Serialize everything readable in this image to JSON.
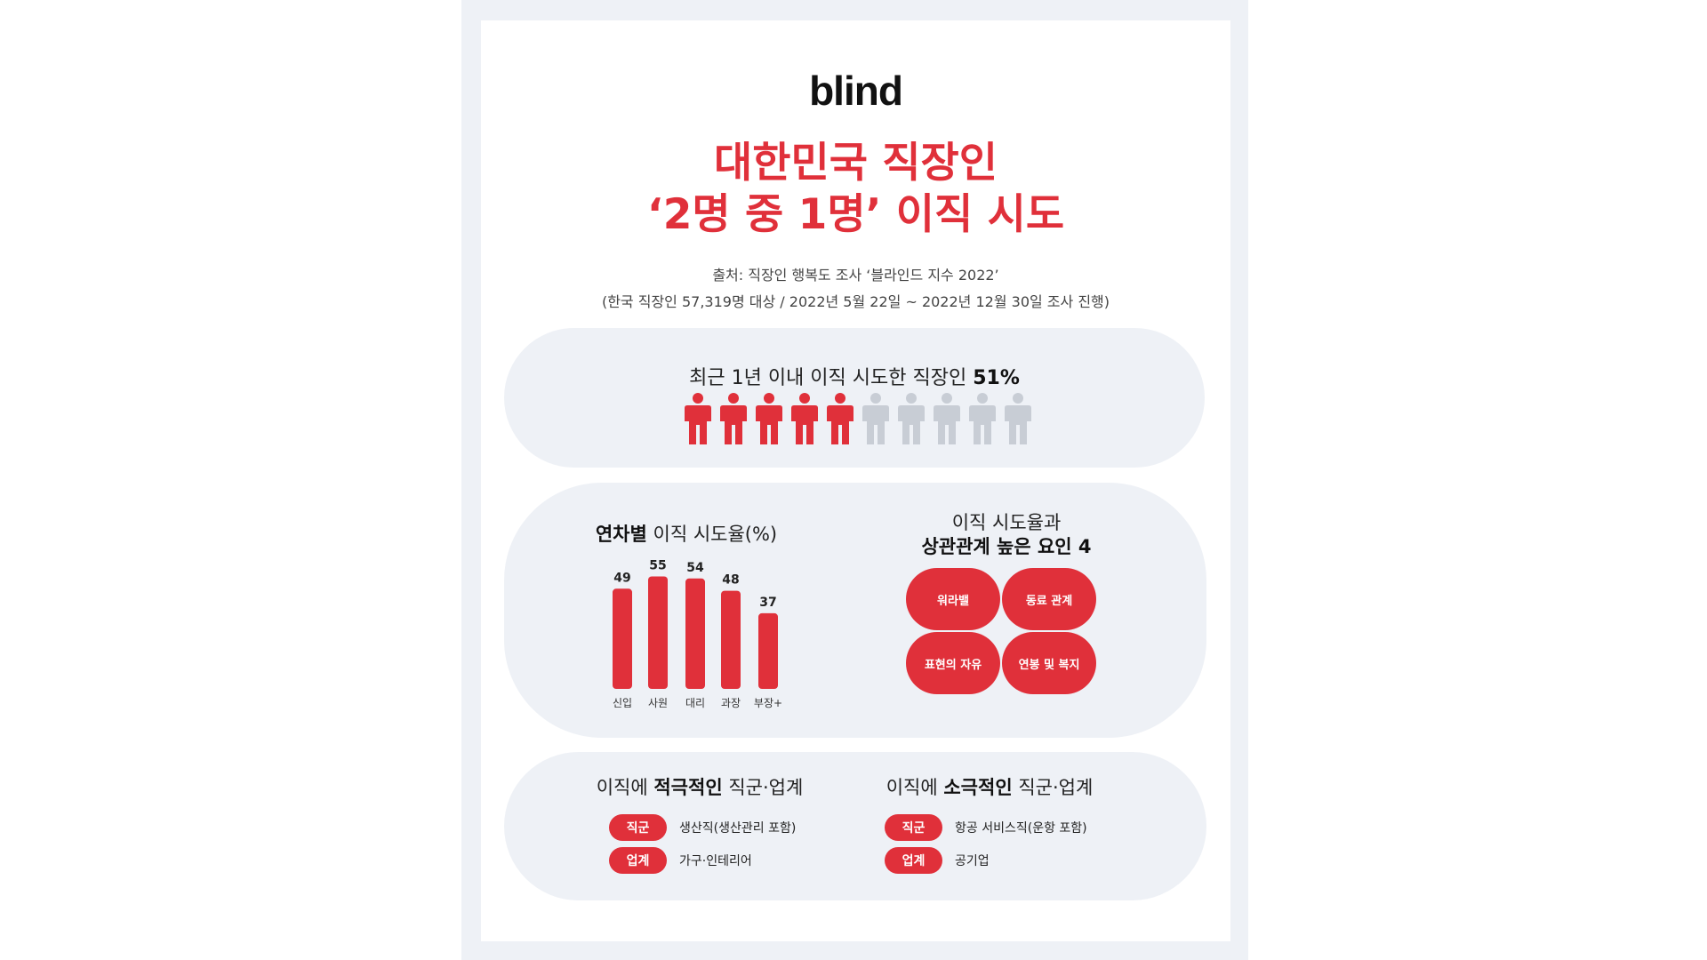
{
  "logo": "blind",
  "title": {
    "line1": "대한민국 직장인",
    "line2": "‘2명 중 1명’ 이직 시도"
  },
  "source": {
    "line1": "출처: 직장인 행복도 조사 ‘블라인드 지수 2022’",
    "line2": "(한국 직장인 57,319명 대상 / 2022년 5월 22일 ~ 2022년 12월 30일 조사 진행)"
  },
  "stat": {
    "text": "최근 1년 이내 이직 시도한 직장인",
    "value": "51%",
    "filled": 5,
    "total": 10,
    "filled_color": "#e0303a",
    "empty_color": "#c8cdd5",
    "icon": "person-icon"
  },
  "chart_section": {
    "title_bold": "연차별",
    "title_rest": " 이직 시도율(%)"
  },
  "chart_data": {
    "type": "bar",
    "categories": [
      "신입",
      "사원",
      "대리",
      "과장",
      "부장+"
    ],
    "values": [
      49,
      55,
      54,
      48,
      37
    ],
    "data_labels": [
      "49",
      "55",
      "54",
      "48",
      "37"
    ],
    "title": "연차별 이직 시도율(%)",
    "color": "#e0303a"
  },
  "factors": {
    "title_line1": "이직 시도율과",
    "title_line2": "상관관계 높은 요인 4",
    "items": [
      "워라밸",
      "동료 관계",
      "표현의 자유",
      "연봉 및 복지"
    ]
  },
  "active": {
    "title_pre": "이직에 ",
    "title_bold": "적극적인",
    "title_post": " 직군·업계",
    "rows": [
      {
        "tag": "직군",
        "text": "생산직(생산관리 포함)"
      },
      {
        "tag": "업계",
        "text": "가구·인테리어"
      }
    ]
  },
  "passive": {
    "title_pre": "이직에 ",
    "title_bold": "소극적인",
    "title_post": " 직군·업계",
    "rows": [
      {
        "tag": "직군",
        "text": "항공 서비스직(운항 포함)"
      },
      {
        "tag": "업계",
        "text": "공기업"
      }
    ]
  },
  "colors": {
    "accent": "#e0303a",
    "panel": "#eef1f6"
  }
}
